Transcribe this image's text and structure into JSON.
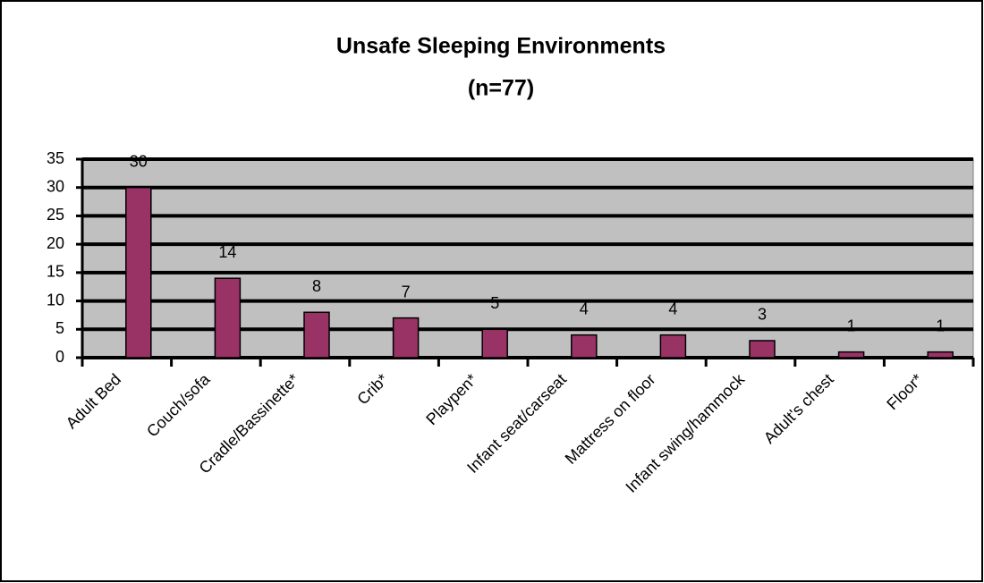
{
  "chart_data": {
    "type": "bar",
    "title": "Unsafe Sleeping Environments",
    "subtitle": "(n=77)",
    "categories": [
      "Adult Bed",
      "Couch/sofa",
      "Cradle/Bassinette*",
      "Crib*",
      "Playpen*",
      "Infant seat/carseat",
      "Mattress on floor",
      "Infant swing/hammock",
      "Adult's chest",
      "Floor*"
    ],
    "values": [
      30,
      14,
      8,
      7,
      5,
      4,
      4,
      3,
      1,
      1
    ],
    "color": "#993366",
    "ylim": [
      0,
      35
    ],
    "yticks": [
      0,
      5,
      10,
      15,
      20,
      25,
      30,
      35
    ],
    "grid": true
  }
}
